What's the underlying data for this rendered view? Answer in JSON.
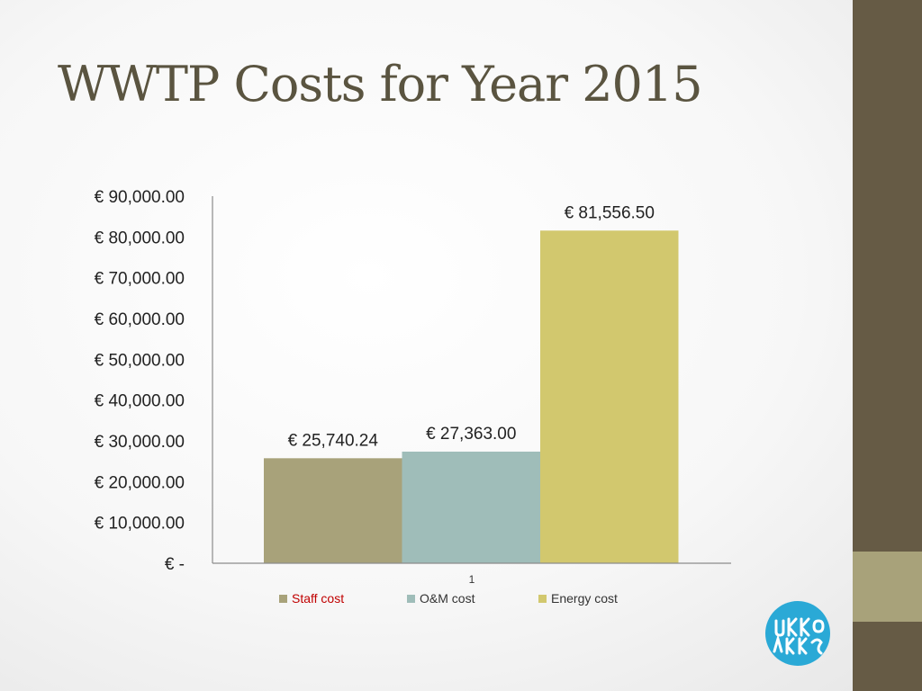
{
  "slide": {
    "title": "WWTP Costs for Year 2015",
    "accent_color": "#665b45",
    "accent_light_color": "#a8a27a",
    "logo_color": "#2aa9d6"
  },
  "chart_data": {
    "type": "bar",
    "title": "",
    "xlabel": "",
    "ylabel": "",
    "categories": [
      "1"
    ],
    "ylim": [
      0,
      90000
    ],
    "y_tick_step": 10000,
    "y_tick_labels": [
      "€ -",
      "€ 10,000.00",
      "€ 20,000.00",
      "€ 30,000.00",
      "€ 40,000.00",
      "€ 50,000.00",
      "€ 60,000.00",
      "€ 70,000.00",
      "€ 80,000.00",
      "€ 90,000.00"
    ],
    "grid": false,
    "legend_position": "bottom",
    "series": [
      {
        "name": "Staff cost",
        "values": [
          25740.24
        ],
        "label": "€ 25,740.24",
        "color": "#a8a27a",
        "legend_text_color": "#c00000"
      },
      {
        "name": "O&M cost",
        "values": [
          27363.0
        ],
        "label": "€ 27,363.00",
        "color": "#9fbdb9",
        "legend_text_color": "#333333"
      },
      {
        "name": "Energy cost",
        "values": [
          81556.5
        ],
        "label": "€ 81,556.50",
        "color": "#d2c86e",
        "legend_text_color": "#333333"
      }
    ]
  }
}
